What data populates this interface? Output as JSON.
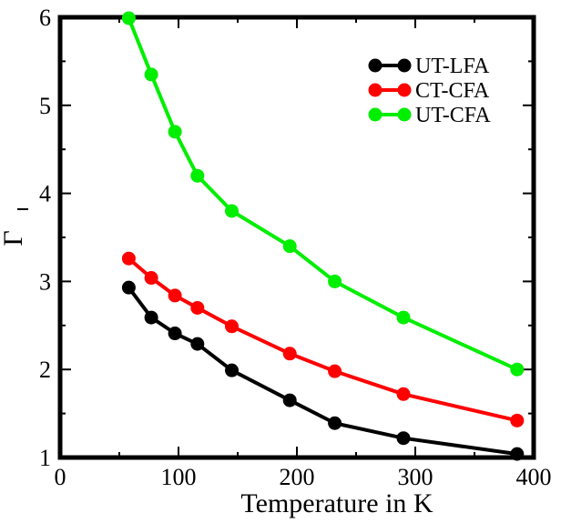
{
  "chart_data": {
    "type": "line",
    "title": "",
    "xlabel": "Temperature in K",
    "ylabel": "Γ",
    "ylabel_overbar": true,
    "xlim": [
      0,
      400
    ],
    "ylim": [
      1,
      6
    ],
    "x_ticks": [
      0,
      100,
      200,
      300,
      400
    ],
    "y_ticks": [
      1,
      2,
      3,
      4,
      5,
      6
    ],
    "x_tick_labels": [
      "0",
      "100",
      "200",
      "300",
      "400"
    ],
    "y_tick_labels": [
      "1",
      "2",
      "3",
      "4",
      "5",
      "6"
    ],
    "grid": false,
    "legend_position": "top-right",
    "series": [
      {
        "name": "UT-LFA",
        "color": "#000000",
        "x": [
          58,
          77,
          97,
          116,
          145,
          194,
          232,
          290,
          386
        ],
        "y": [
          2.93,
          2.59,
          2.41,
          2.29,
          1.99,
          1.65,
          1.39,
          1.22,
          1.04
        ]
      },
      {
        "name": "CT-CFA",
        "color": "#ff0000",
        "x": [
          58,
          77,
          97,
          116,
          145,
          194,
          232,
          290,
          386
        ],
        "y": [
          3.26,
          3.04,
          2.84,
          2.7,
          2.49,
          2.18,
          1.98,
          1.72,
          1.42
        ]
      },
      {
        "name": "UT-CFA",
        "color": "#00ee00",
        "x": [
          58,
          77,
          97,
          116,
          145,
          194,
          232,
          290,
          386
        ],
        "y": [
          5.99,
          5.35,
          4.7,
          4.2,
          3.8,
          3.4,
          3.0,
          2.59,
          2.0
        ]
      }
    ]
  }
}
